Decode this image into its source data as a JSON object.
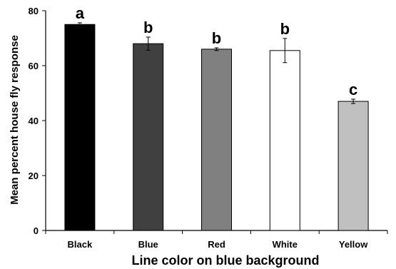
{
  "chart_data": {
    "type": "bar",
    "title": "",
    "xlabel": "Line color on blue background",
    "ylabel": "Mean percent house fly response",
    "ylim": [
      0,
      80
    ],
    "yticks": [
      0,
      20,
      40,
      60,
      80
    ],
    "grid": false,
    "legend": "none",
    "categories": [
      "Black",
      "Blue",
      "Red",
      "White",
      "Yellow"
    ],
    "values": [
      75,
      68,
      66,
      65.5,
      47
    ],
    "errors": [
      0.6,
      2.4,
      0.5,
      4.4,
      0.8
    ],
    "significance_labels": [
      "a",
      "b",
      "b",
      "b",
      "c"
    ],
    "bar_colors": [
      "#000000",
      "#404040",
      "#808080",
      "#ffffff",
      "#c0c0c0"
    ]
  }
}
